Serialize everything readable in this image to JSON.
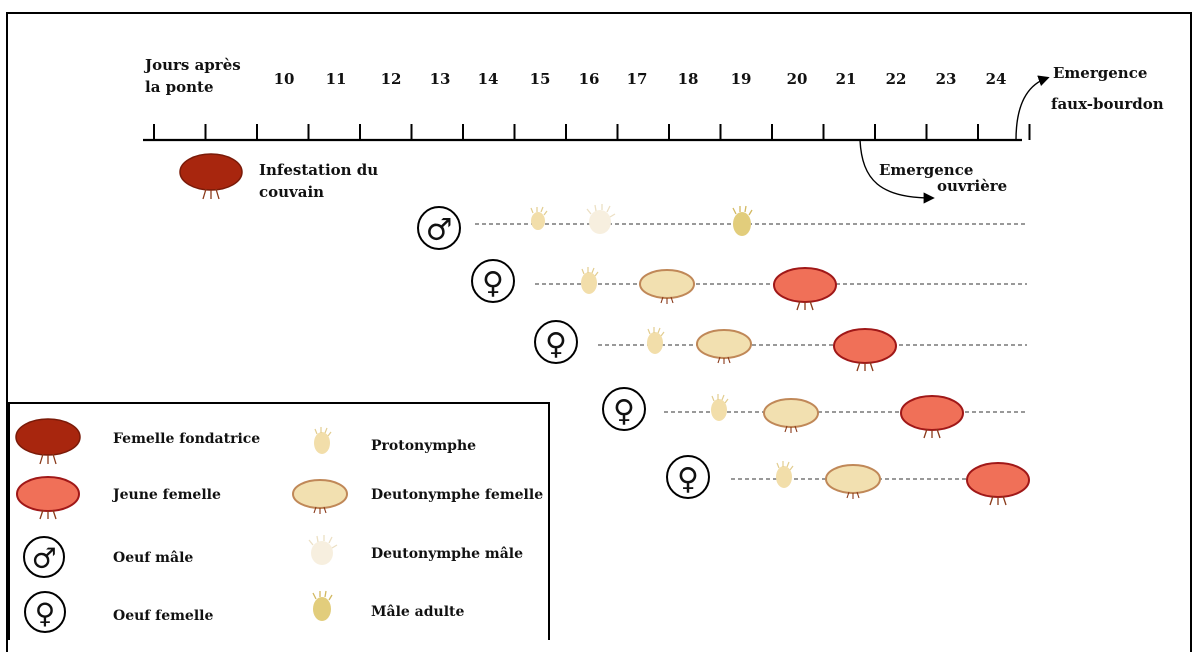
{
  "timeline": {
    "axis_title": [
      "Jours après",
      "la ponte"
    ],
    "days": [
      "10",
      "11",
      "12",
      "13",
      "14",
      "15",
      "16",
      "17",
      "18",
      "19",
      "20",
      "21",
      "22",
      "23",
      "24"
    ],
    "emergence_drone": [
      "Emergence",
      "faux-bourdon"
    ],
    "emergence_worker": [
      "Emergence",
      "ouvrière"
    ]
  },
  "infestation_label": [
    "Infestation du",
    "couvain"
  ],
  "rows": [
    {
      "sex": "male",
      "symbol": "♂"
    },
    {
      "sex": "female",
      "symbol": "♀"
    },
    {
      "sex": "female",
      "symbol": "♀"
    },
    {
      "sex": "female",
      "symbol": "♀"
    },
    {
      "sex": "female",
      "symbol": "♀"
    }
  ],
  "legend": [
    {
      "label": "Femelle fondatrice",
      "icon": "founding-female-icon"
    },
    {
      "label": "Jeune femelle",
      "icon": "young-female-icon"
    },
    {
      "label": "Oeuf mâle",
      "icon": "male-egg-icon",
      "symbol": "♂"
    },
    {
      "label": "Oeuf femelle",
      "icon": "female-egg-icon",
      "symbol": "♀"
    },
    {
      "label": "Protonymphe",
      "icon": "protonymph-icon"
    },
    {
      "label": "Deutonymphe femelle",
      "icon": "female-deutonymph-icon"
    },
    {
      "label": "Deutonymphe mâle",
      "icon": "male-deutonymph-icon"
    },
    {
      "label": "Mâle adulte",
      "icon": "adult-male-icon"
    }
  ],
  "colors": {
    "founding_female": "#a8260e",
    "young_female": "#f07058",
    "young_female_border": "#a01818",
    "female_deutonymph": "#f2e0b0",
    "female_deutonymph_border": "#c08858",
    "protonymph": "#f2deaa",
    "male_deutonymph": "#f7efdf",
    "adult_male": "#e2cd7c",
    "legs": "#8a3a1a"
  }
}
